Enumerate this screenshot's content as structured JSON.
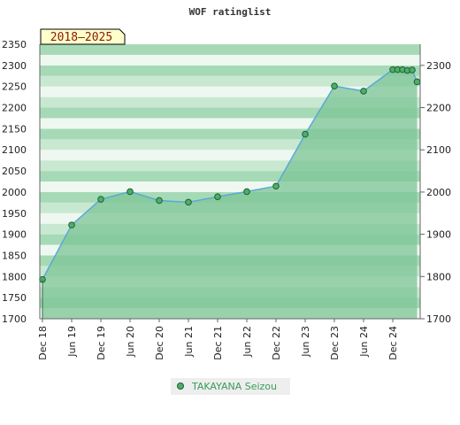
{
  "chart_data": {
    "type": "area",
    "title": "WOF ratinglist",
    "period_label": "2018–2025",
    "ylim": [
      1700,
      2350
    ],
    "y_ticks_left": [
      1700,
      1750,
      1800,
      1850,
      1900,
      1950,
      2000,
      2050,
      2100,
      2150,
      2200,
      2250,
      2300,
      2350
    ],
    "y_ticks_right": [
      1700,
      1800,
      1900,
      2000,
      2100,
      2200,
      2300
    ],
    "x_ticks": [
      "Dec 18",
      "Jun 19",
      "Dec 19",
      "Jun 20",
      "Dec 20",
      "Jun 21",
      "Dec 21",
      "Jun 22",
      "Dec 22",
      "Jun 23",
      "Dec 23",
      "Jun 24",
      "Dec 24"
    ],
    "grid": true,
    "legend_position": "bottom-center",
    "series": [
      {
        "name": "TAKAYANA Seizou",
        "color": "#2e8b57",
        "points": [
          {
            "x": "Dec 18",
            "y": 1793
          },
          {
            "x": "Jun 19",
            "y": 1922
          },
          {
            "x": "Dec 19",
            "y": 1983
          },
          {
            "x": "Jun 20",
            "y": 2001
          },
          {
            "x": "Dec 20",
            "y": 1980
          },
          {
            "x": "Jun 21",
            "y": 1976
          },
          {
            "x": "Dec 21",
            "y": 1989
          },
          {
            "x": "Jun 22",
            "y": 2001
          },
          {
            "x": "Dec 22",
            "y": 2014
          },
          {
            "x": "Jun 23",
            "y": 2137
          },
          {
            "x": "Dec 23",
            "y": 2251
          },
          {
            "x": "Jun 24",
            "y": 2239
          },
          {
            "x": "Dec 24",
            "y": 2290
          },
          {
            "x": "Jan 25",
            "y": 2290
          },
          {
            "x": "Feb 25",
            "y": 2290
          },
          {
            "x": "Mar 25",
            "y": 2288
          },
          {
            "x": "Apr 25",
            "y": 2289
          },
          {
            "x": "May 25",
            "y": 2261
          }
        ]
      }
    ]
  },
  "colors": {
    "band_light": "#eef8f1",
    "band_mid": "#c8e8d2",
    "band_dark": "#a6dab6",
    "area_fill": "#7cc496",
    "line": "#5aa9d6",
    "marker_fill": "#4caf68",
    "badge_fill": "#ffffcc"
  }
}
